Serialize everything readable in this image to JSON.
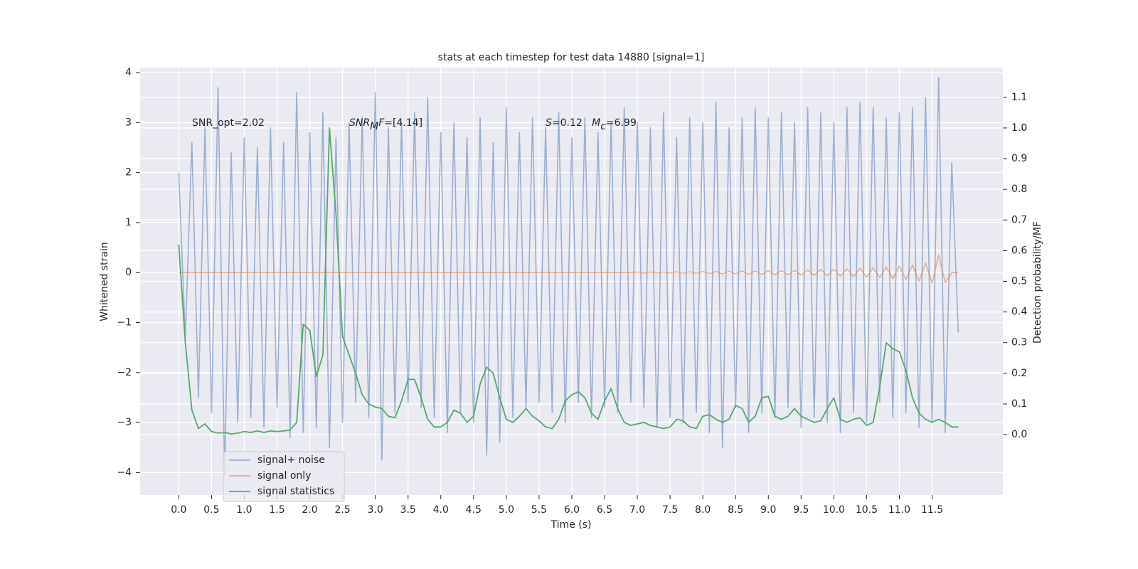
{
  "chart_data": {
    "type": "line",
    "title": "stats at each timestep for test data 14880 [signal=1]",
    "xlabel": "Time (s)",
    "ylabel": "Whitened strain",
    "y2label": "Detection probability/MF",
    "annotations": [
      [
        {
          "text": "SNR_opt=2.02"
        }
      ],
      [
        {
          "text": "SNR",
          "italic": true
        },
        {
          "text": "M",
          "italic": true,
          "sub": true
        },
        {
          "text": "F",
          "italic": true
        },
        {
          "text": "=[4.14]"
        }
      ],
      [
        {
          "text": "S",
          "italic": true
        },
        {
          "text": "=0.12   "
        },
        {
          "text": "M",
          "italic": true
        },
        {
          "text": "c",
          "italic": true,
          "sub": true
        },
        {
          "text": "=6.99"
        }
      ]
    ],
    "x": [
      0,
      0.1,
      0.2,
      0.3,
      0.4,
      0.5,
      0.6,
      0.7,
      0.8,
      0.9,
      1,
      1.1,
      1.2,
      1.3,
      1.4,
      1.5,
      1.6,
      1.7,
      1.8,
      1.9,
      2,
      2.1,
      2.2,
      2.3,
      2.4,
      2.5,
      2.6,
      2.7,
      2.8,
      2.9,
      3,
      3.1,
      3.2,
      3.3,
      3.4,
      3.5,
      3.6,
      3.7,
      3.8,
      3.9,
      4,
      4.1,
      4.2,
      4.3,
      4.4,
      4.5,
      4.6,
      4.7,
      4.8,
      4.9,
      5,
      5.1,
      5.2,
      5.3,
      5.4,
      5.5,
      5.6,
      5.7,
      5.8,
      5.9,
      6,
      6.1,
      6.2,
      6.3,
      6.4,
      6.5,
      6.6,
      6.7,
      6.8,
      6.9,
      7,
      7.1,
      7.2,
      7.3,
      7.4,
      7.5,
      7.6,
      7.7,
      7.8,
      7.9,
      8,
      8.1,
      8.2,
      8.3,
      8.4,
      8.5,
      8.6,
      8.7,
      8.8,
      8.9,
      9,
      9.1,
      9.2,
      9.3,
      9.4,
      9.5,
      9.6,
      9.7,
      9.8,
      9.9,
      10,
      10.1,
      10.2,
      10.3,
      10.4,
      10.5,
      10.6,
      10.7,
      10.8,
      10.9,
      11,
      11.1,
      11.2,
      11.3,
      11.4,
      11.5,
      11.6,
      11.7,
      11.8,
      11.9
    ],
    "series": [
      {
        "name": "signal+ noise",
        "color": "#4c72b0",
        "opacity": 0.5,
        "values": [
          2.0,
          -1.3,
          2.6,
          -2.5,
          2.9,
          -2.8,
          3.7,
          -4.05,
          2.4,
          -3.0,
          2.7,
          -2.9,
          2.5,
          -3.1,
          2.9,
          -2.7,
          2.6,
          -3.3,
          3.6,
          -3.2,
          2.8,
          -3.1,
          3.2,
          -3.5,
          2.7,
          -3.0,
          3.0,
          -2.6,
          3.1,
          -2.9,
          3.6,
          -3.75,
          2.9,
          -2.8,
          3.0,
          -2.6,
          3.2,
          -2.7,
          3.5,
          -2.9,
          2.8,
          -3.2,
          3.0,
          -2.8,
          2.7,
          -3.0,
          3.1,
          -3.65,
          2.6,
          -3.4,
          3.3,
          -2.9,
          2.8,
          -2.7,
          3.1,
          -2.6,
          2.9,
          -2.8,
          3.2,
          -3.0,
          2.7,
          -2.6,
          3.1,
          -2.9,
          2.8,
          -2.7,
          3.0,
          -2.8,
          3.3,
          -2.6,
          3.0,
          -2.7,
          2.9,
          -3.1,
          3.2,
          -2.9,
          2.7,
          -3.0,
          3.1,
          -2.8,
          3.0,
          -3.2,
          3.4,
          -3.5,
          2.9,
          -2.7,
          3.1,
          -3.2,
          3.3,
          -2.8,
          3.1,
          -2.9,
          3.2,
          -2.7,
          3.0,
          -3.1,
          3.3,
          -2.9,
          3.2,
          -3.0,
          3.0,
          -3.2,
          3.3,
          -2.8,
          3.4,
          -3.0,
          3.3,
          -2.6,
          3.1,
          -2.9,
          3.2,
          -2.8,
          3.3,
          -3.1,
          3.5,
          -3.0,
          3.9,
          -3.2,
          2.2,
          -1.2
        ]
      },
      {
        "name": "signal only",
        "color": "#dd8452",
        "opacity": 0.6,
        "values": [
          0,
          0,
          0,
          0,
          0,
          0,
          0,
          0,
          0,
          0,
          0,
          0,
          0,
          0,
          0,
          0,
          0,
          0,
          0,
          0,
          0,
          0,
          0,
          0,
          0,
          0,
          0,
          0,
          0,
          0,
          0,
          0,
          0,
          0,
          0,
          0,
          0,
          0,
          0,
          0,
          0,
          0,
          0,
          0,
          0,
          0,
          0,
          0,
          0,
          0,
          0,
          0,
          0,
          0,
          0,
          0,
          0,
          0,
          0,
          0,
          0,
          0,
          0,
          0,
          0,
          0,
          0,
          0,
          0,
          0,
          0.01,
          -0.01,
          0.01,
          -0.01,
          0.01,
          -0.01,
          0.015,
          -0.015,
          0.015,
          -0.015,
          0.02,
          -0.02,
          0.02,
          -0.025,
          0.025,
          -0.025,
          0.03,
          -0.03,
          0.03,
          -0.035,
          0.035,
          -0.04,
          0.04,
          -0.045,
          0.045,
          -0.05,
          0.05,
          -0.055,
          0.06,
          -0.06,
          0.065,
          -0.07,
          0.075,
          -0.08,
          0.085,
          -0.09,
          0.095,
          -0.1,
          0.11,
          -0.12,
          0.13,
          -0.14,
          0.15,
          -0.17,
          0.19,
          -0.21,
          0.35,
          -0.2,
          0,
          0
        ]
      },
      {
        "name": "signal statistics",
        "color": "#55a868",
        "opacity": 1,
        "axis": "y2",
        "values": [
          0.62,
          0.3,
          0.08,
          0.02,
          0.035,
          0.01,
          0.005,
          0.007,
          0.002,
          0.005,
          0.01,
          0.007,
          0.012,
          0.007,
          0.012,
          0.01,
          0.012,
          0.015,
          0.04,
          0.36,
          0.34,
          0.19,
          0.26,
          1.0,
          0.72,
          0.32,
          0.26,
          0.2,
          0.13,
          0.1,
          0.09,
          0.085,
          0.06,
          0.055,
          0.11,
          0.18,
          0.18,
          0.12,
          0.05,
          0.025,
          0.025,
          0.04,
          0.08,
          0.07,
          0.04,
          0.06,
          0.165,
          0.22,
          0.2,
          0.12,
          0.05,
          0.04,
          0.06,
          0.085,
          0.06,
          0.045,
          0.025,
          0.02,
          0.05,
          0.11,
          0.13,
          0.14,
          0.12,
          0.07,
          0.05,
          0.11,
          0.15,
          0.085,
          0.04,
          0.03,
          0.035,
          0.04,
          0.03,
          0.025,
          0.02,
          0.025,
          0.05,
          0.045,
          0.025,
          0.02,
          0.06,
          0.065,
          0.05,
          0.04,
          0.05,
          0.095,
          0.085,
          0.04,
          0.06,
          0.12,
          0.125,
          0.06,
          0.05,
          0.06,
          0.085,
          0.06,
          0.05,
          0.04,
          0.045,
          0.085,
          0.12,
          0.05,
          0.04,
          0.05,
          0.055,
          0.03,
          0.04,
          0.155,
          0.3,
          0.28,
          0.27,
          0.21,
          0.12,
          0.07,
          0.05,
          0.04,
          0.05,
          0.04,
          0.025,
          0.025
        ]
      }
    ],
    "xlim": [
      -0.59,
      12.58
    ],
    "xticks": [
      {
        "value": 0,
        "label": "0.0"
      },
      0.5,
      {
        "value": 1,
        "label": "1.0"
      },
      1.5,
      {
        "value": 2,
        "label": "2.0"
      },
      2.5,
      {
        "value": 3,
        "label": "3.0"
      },
      3.5,
      {
        "value": 4,
        "label": "4.0"
      },
      4.5,
      {
        "value": 5,
        "label": "5.0"
      },
      5.5,
      {
        "value": 6,
        "label": "6.0"
      },
      6.5,
      {
        "value": 7,
        "label": "7.0"
      },
      7.5,
      {
        "value": 8,
        "label": "8.0"
      },
      8.5,
      {
        "value": 9,
        "label": "9.0"
      },
      9.5,
      {
        "value": 10,
        "label": "10.0"
      },
      10.5,
      {
        "value": 11,
        "label": "11.0"
      },
      11.5
    ],
    "ylim": [
      -4.45,
      4.1
    ],
    "yticks": [
      {
        "value": -4,
        "label": "−4"
      },
      {
        "value": -3,
        "label": "−3"
      },
      {
        "value": -2,
        "label": "−2"
      },
      {
        "value": -1,
        "label": "−1"
      },
      0,
      1,
      2,
      3,
      4
    ],
    "y2lim": [
      -0.197,
      1.197
    ],
    "y2ticks": [
      {
        "value": 0,
        "label": "0.0"
      },
      0.1,
      0.2,
      0.3,
      0.4,
      0.5,
      0.6,
      0.7,
      0.8,
      0.9,
      {
        "value": 1,
        "label": "1.0"
      },
      1.1
    ],
    "grid": true,
    "legend": "lower left"
  }
}
